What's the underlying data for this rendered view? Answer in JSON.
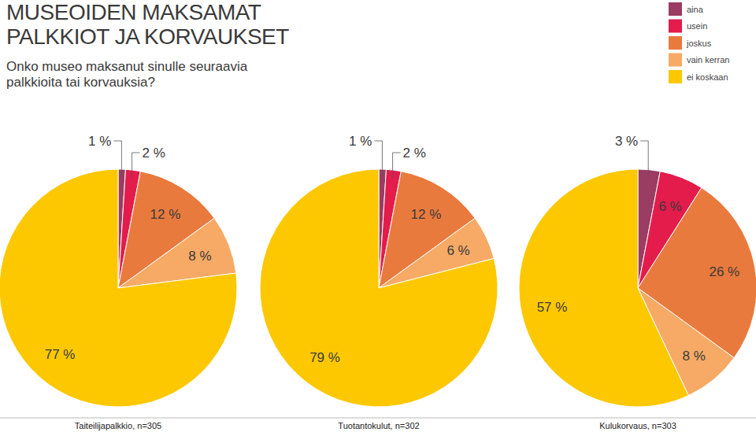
{
  "header": {
    "title_lines": [
      "MUSEOIDEN MAKSAMAT",
      "PALKKIOT JA KORVAUKSET"
    ],
    "subtitle_lines": [
      "Onko museo maksanut sinulle seuraavia",
      "palkkioita tai korvauksia?"
    ]
  },
  "chart_data": [
    {
      "type": "pie",
      "title": "Taiteilijapalkkio, n=305",
      "categories": [
        "aina",
        "usein",
        "joskus",
        "vain kerran",
        "ei koskaan"
      ],
      "values": [
        1,
        2,
        12,
        8,
        77
      ],
      "value_labels": [
        "1 %",
        "2 %",
        "12 %",
        "8 %",
        "77 %"
      ],
      "colors": [
        "#9b3c63",
        "#e31c4b",
        "#e97a3d",
        "#f6aa65",
        "#fdc800"
      ],
      "data_labels": true,
      "legend": "top-right"
    },
    {
      "type": "pie",
      "title": "Tuotantokulut, n=302",
      "categories": [
        "aina",
        "usein",
        "joskus",
        "vain kerran",
        "ei koskaan"
      ],
      "values": [
        1,
        2,
        12,
        6,
        79
      ],
      "value_labels": [
        "1 %",
        "2 %",
        "12 %",
        "6 %",
        "79 %"
      ],
      "colors": [
        "#9b3c63",
        "#e31c4b",
        "#e97a3d",
        "#f6aa65",
        "#fdc800"
      ],
      "data_labels": true
    },
    {
      "type": "pie",
      "title": "Kulukorvaus, n=303",
      "categories": [
        "aina",
        "usein",
        "joskus",
        "vain kerran",
        "ei koskaan"
      ],
      "values": [
        3,
        6,
        26,
        8,
        57
      ],
      "value_labels": [
        "3 %",
        "6 %",
        "26 %",
        "8 %",
        "57 %"
      ],
      "colors": [
        "#9b3c63",
        "#e31c4b",
        "#e97a3d",
        "#f6aa65",
        "#fdc800"
      ],
      "data_labels": true
    }
  ]
}
